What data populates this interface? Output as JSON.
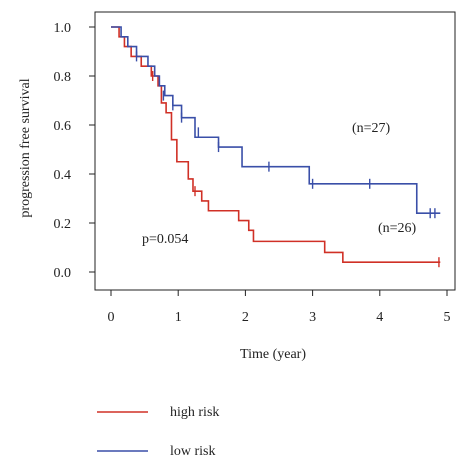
{
  "chart_data": {
    "type": "line",
    "subtype": "kaplan-meier step",
    "xlabel": "Time (year)",
    "ylabel": "progression free survival",
    "xlim": [
      0,
      5
    ],
    "ylim": [
      0,
      1
    ],
    "xticks": [
      "0",
      "1",
      "2",
      "3",
      "4",
      "5"
    ],
    "yticks": [
      "0.0",
      "0.2",
      "0.4",
      "0.6",
      "0.8",
      "1.0"
    ],
    "grid": false,
    "legend_position": "bottom-left",
    "annotations": {
      "pvalue": "p=0.054",
      "n_low": "(n=27)",
      "n_high": "(n=26)"
    },
    "series": [
      {
        "name": "high risk",
        "color": "#d03026",
        "x": [
          0,
          0.12,
          0.2,
          0.3,
          0.45,
          0.6,
          0.7,
          0.75,
          0.82,
          0.9,
          0.98,
          1.15,
          1.22,
          1.35,
          1.45,
          1.9,
          2.05,
          2.12,
          3.18,
          3.45,
          4.9
        ],
        "y": [
          1.0,
          0.96,
          0.92,
          0.88,
          0.84,
          0.8,
          0.76,
          0.69,
          0.65,
          0.54,
          0.45,
          0.38,
          0.33,
          0.29,
          0.25,
          0.21,
          0.17,
          0.125,
          0.08,
          0.04,
          0.04
        ],
        "censor_x": [
          0.62,
          1.25,
          4.88
        ],
        "censor_y": [
          0.8,
          0.33,
          0.04
        ]
      },
      {
        "name": "low risk",
        "color": "#3a4fa8",
        "x": [
          0,
          0.15,
          0.25,
          0.38,
          0.55,
          0.65,
          0.72,
          0.8,
          0.92,
          1.05,
          1.25,
          1.6,
          1.95,
          2.95,
          4.55,
          4.9
        ],
        "y": [
          1.0,
          0.96,
          0.92,
          0.88,
          0.84,
          0.8,
          0.76,
          0.72,
          0.68,
          0.63,
          0.55,
          0.51,
          0.43,
          0.36,
          0.24,
          0.24
        ],
        "censor_x": [
          0.38,
          0.78,
          0.92,
          1.05,
          1.3,
          1.6,
          2.35,
          3.0,
          3.85,
          4.75,
          4.82
        ],
        "censor_y": [
          0.88,
          0.72,
          0.68,
          0.63,
          0.57,
          0.51,
          0.43,
          0.36,
          0.36,
          0.24,
          0.24
        ]
      }
    ]
  }
}
